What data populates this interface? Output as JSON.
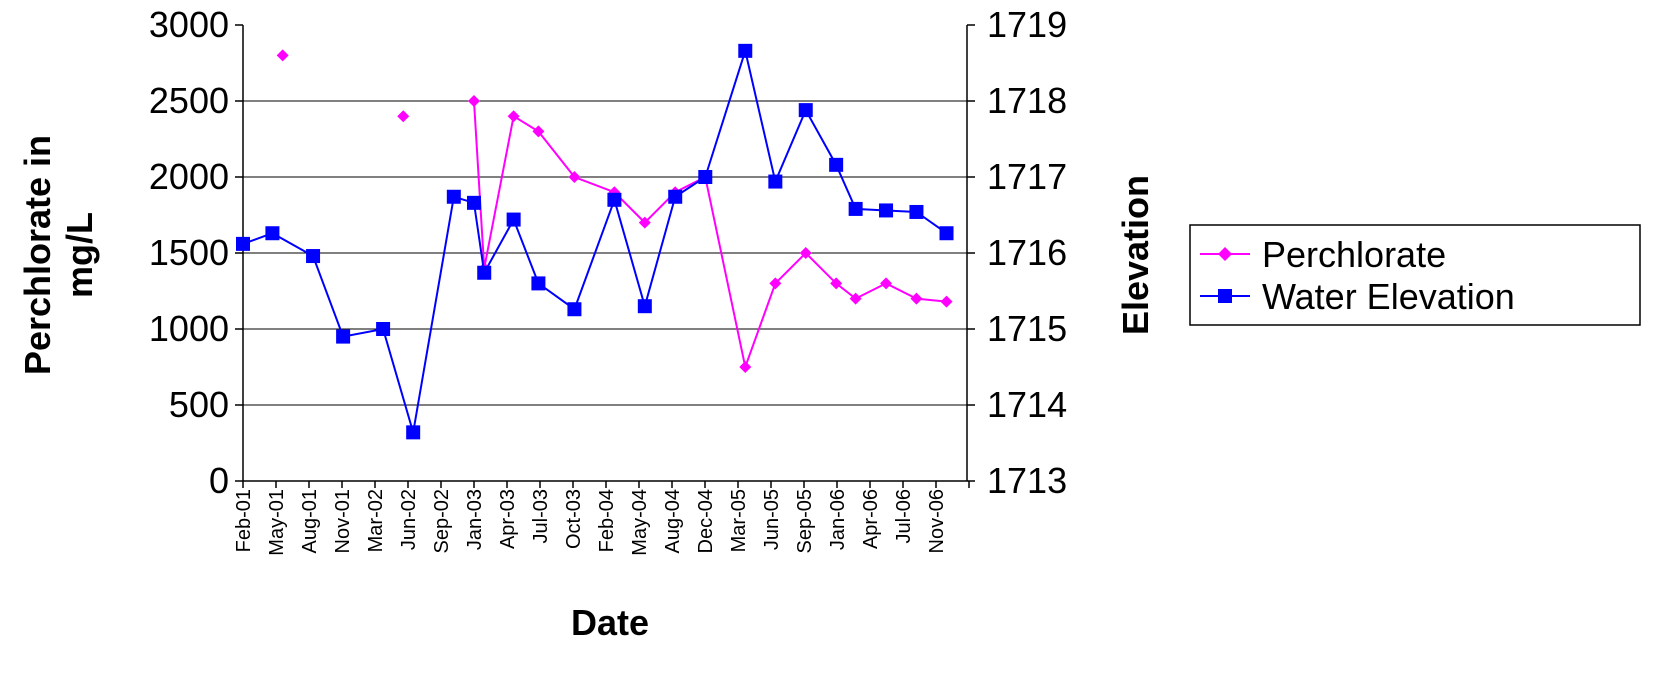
{
  "chart_data": {
    "type": "line",
    "xlabel": "Date",
    "ylabel_left": "Perchlorate in mg/L",
    "ylabel_left_lines": [
      "Perchlorate in",
      "mg/L"
    ],
    "ylabel_right": "Elevation",
    "ylim_left": [
      0,
      3000
    ],
    "ylim_right": [
      1713,
      1719
    ],
    "yticks_left": [
      "0",
      "500",
      "1000",
      "1500",
      "2000",
      "2500",
      "3000"
    ],
    "yticks_right": [
      "1713",
      "1714",
      "1715",
      "1716",
      "1717",
      "1718",
      "1719"
    ],
    "xtick_labels": [
      "Feb-01",
      "May-01",
      "Aug-01",
      "Nov-01",
      "Mar-02",
      "Jun-02",
      "Sep-02",
      "Jan-03",
      "Apr-03",
      "Jul-03",
      "Oct-03",
      "Feb-04",
      "May-04",
      "Aug-04",
      "Dec-04",
      "Mar-05",
      "Jun-05",
      "Sep-05",
      "Jan-06",
      "Apr-06",
      "Jul-06",
      "Nov-06"
    ],
    "x_range": [
      "2001-02-01",
      "2007-02-01"
    ],
    "grid": true,
    "legend_position": "right",
    "series": [
      {
        "name": "Perchlorate",
        "axis": "left",
        "color": "#ff00ff",
        "marker": "diamond",
        "segments": [
          [
            [
              "2001-06-01",
              2800
            ]
          ],
          [
            [
              "2002-06-01",
              2400
            ]
          ],
          [
            [
              "2003-01-01",
              2500
            ],
            [
              "2003-02-01",
              1400
            ],
            [
              "2003-05-01",
              2400
            ],
            [
              "2003-07-15",
              2300
            ],
            [
              "2003-11-01",
              2000
            ],
            [
              "2004-03-01",
              1900
            ],
            [
              "2004-06-01",
              1700
            ],
            [
              "2004-09-01",
              1900
            ],
            [
              "2004-12-01",
              2000
            ],
            [
              "2005-04-01",
              750
            ],
            [
              "2005-07-01",
              1300
            ],
            [
              "2005-10-01",
              1500
            ],
            [
              "2006-01-01",
              1300
            ],
            [
              "2006-03-01",
              1200
            ],
            [
              "2006-06-01",
              1300
            ],
            [
              "2006-09-01",
              1200
            ],
            [
              "2006-12-01",
              1180
            ]
          ]
        ]
      },
      {
        "name": "Water Elevation",
        "axis": "right",
        "color": "#0000ff",
        "marker": "square",
        "segments": [
          [
            [
              "2001-02-01",
              1716.12
            ],
            [
              "2001-05-01",
              1716.26
            ],
            [
              "2001-09-01",
              1715.96
            ],
            [
              "2001-12-01",
              1714.9
            ],
            [
              "2002-04-01",
              1715.0
            ],
            [
              "2002-07-01",
              1713.64
            ],
            [
              "2002-11-01",
              1716.74
            ],
            [
              "2003-01-01",
              1716.66
            ],
            [
              "2003-02-01",
              1715.74
            ],
            [
              "2003-05-01",
              1716.44
            ],
            [
              "2003-07-15",
              1715.6
            ],
            [
              "2003-11-01",
              1715.26
            ],
            [
              "2004-03-01",
              1716.7
            ],
            [
              "2004-06-01",
              1715.3
            ],
            [
              "2004-09-01",
              1716.74
            ],
            [
              "2004-12-01",
              1717.0
            ],
            [
              "2005-04-01",
              1718.66
            ],
            [
              "2005-07-01",
              1716.94
            ],
            [
              "2005-10-01",
              1717.88
            ],
            [
              "2006-01-01",
              1717.16
            ],
            [
              "2006-03-01",
              1716.58
            ],
            [
              "2006-06-01",
              1716.56
            ],
            [
              "2006-09-01",
              1716.54
            ],
            [
              "2006-12-01",
              1716.26
            ]
          ]
        ]
      }
    ]
  }
}
